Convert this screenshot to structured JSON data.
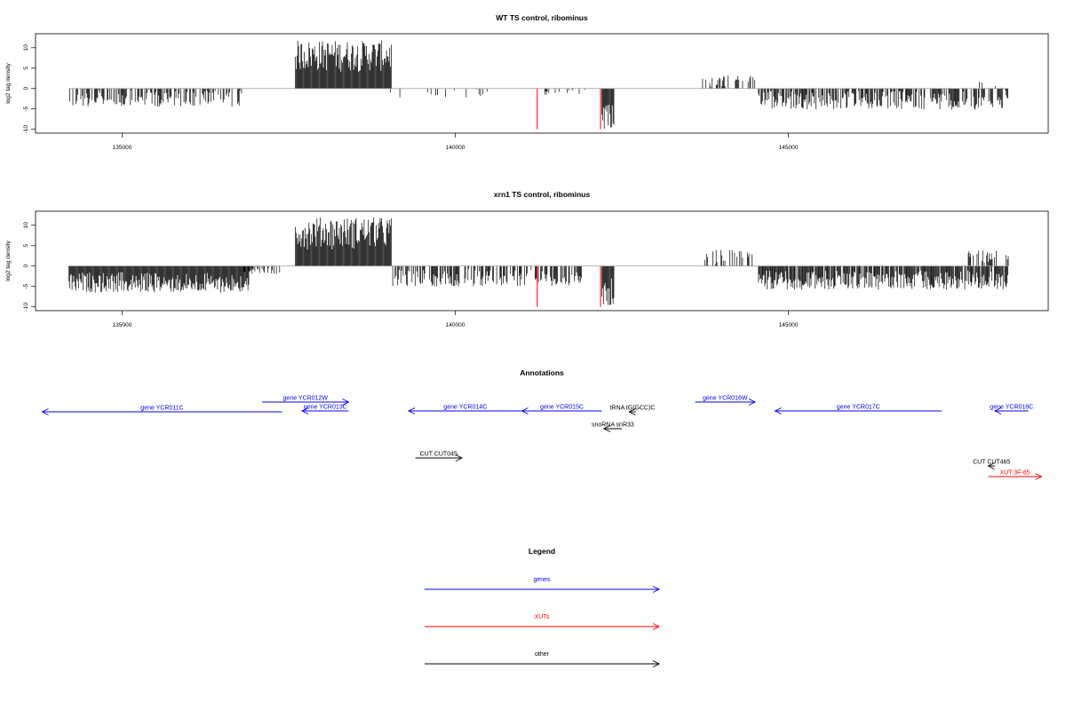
{
  "chart_data": [
    {
      "type": "bar",
      "title": "WT TS control, ribominus",
      "ylabel": "log2 tag density",
      "xlabel": "",
      "xlim": [
        133700,
        148900
      ],
      "ylim": [
        -10.5,
        13
      ],
      "x_ticks": [
        "135000",
        "140000",
        "145000"
      ],
      "y_ticks": [
        "-10",
        "-5",
        "0",
        "5",
        "10"
      ],
      "axis_line": 0,
      "color": "#000000",
      "highlight_color": "#ff3b3b",
      "segments": [
        {
          "start": 134200,
          "end": 136800,
          "sign": -1,
          "min": 0.3,
          "max": 4.5,
          "density": 0.6
        },
        {
          "start": 137600,
          "end": 139050,
          "sign": 1,
          "min": 4,
          "max": 11.8,
          "density": 1.0
        },
        {
          "start": 139000,
          "end": 140600,
          "sign": -1,
          "min": 0.2,
          "max": 2.2,
          "density": 0.12
        },
        {
          "start": 141200,
          "end": 142100,
          "sign": -1,
          "min": 0.2,
          "max": 1.6,
          "density": 0.1
        },
        {
          "start": 142200,
          "end": 142380,
          "sign": -1,
          "min": 2,
          "max": 10,
          "density": 1.0
        },
        {
          "start": 143700,
          "end": 144550,
          "sign": 1,
          "min": 0.3,
          "max": 3.2,
          "density": 0.35
        },
        {
          "start": 144550,
          "end": 148300,
          "sign": -1,
          "min": 0.5,
          "max": 5.2,
          "density": 0.7
        },
        {
          "start": 147700,
          "end": 148300,
          "sign": 1,
          "min": 0.2,
          "max": 2.0,
          "density": 0.12
        }
      ],
      "highlights": [
        {
          "x": 141230,
          "y": -10
        },
        {
          "x": 142180,
          "y": -10
        }
      ]
    },
    {
      "type": "bar",
      "title": "xrn1 TS control, ribominus",
      "ylabel": "log2 tag density",
      "xlabel": "",
      "xlim": [
        133700,
        148900
      ],
      "ylim": [
        -10.5,
        13
      ],
      "x_ticks": [
        "135000",
        "140000",
        "145000"
      ],
      "y_ticks": [
        "-10",
        "-5",
        "0",
        "5",
        "10"
      ],
      "axis_line": 0,
      "color": "#000000",
      "highlight_color": "#ff3b3b",
      "segments": [
        {
          "start": 134200,
          "end": 136900,
          "sign": -1,
          "min": 1.5,
          "max": 6.5,
          "density": 1.0
        },
        {
          "start": 136800,
          "end": 137400,
          "sign": -1,
          "min": 0.3,
          "max": 2.0,
          "density": 0.4
        },
        {
          "start": 137600,
          "end": 139050,
          "sign": 1,
          "min": 4,
          "max": 12,
          "density": 1.0
        },
        {
          "start": 139050,
          "end": 141900,
          "sign": -1,
          "min": 0.4,
          "max": 5.0,
          "density": 0.6
        },
        {
          "start": 142200,
          "end": 142380,
          "sign": -1,
          "min": 3,
          "max": 10,
          "density": 1.0
        },
        {
          "start": 143700,
          "end": 144550,
          "sign": 1,
          "min": 0.3,
          "max": 4.0,
          "density": 0.45
        },
        {
          "start": 144550,
          "end": 148300,
          "sign": -1,
          "min": 1,
          "max": 5.8,
          "density": 0.9
        },
        {
          "start": 147700,
          "end": 148300,
          "sign": 1,
          "min": 0.5,
          "max": 3.8,
          "density": 0.5
        }
      ],
      "highlights": [
        {
          "x": 141230,
          "y": -10
        },
        {
          "x": 142180,
          "y": -10
        }
      ]
    }
  ],
  "annotations": {
    "title": "Annotations",
    "items": [
      {
        "label": "gene YCR011C",
        "start": 137400,
        "end": 133800,
        "row": 2,
        "color": "#0000ee"
      },
      {
        "label": "gene YCR012W",
        "start": 137100,
        "end": 138400,
        "row": 0,
        "color": "#0000ee"
      },
      {
        "label": "gene YCR013C",
        "start": 138400,
        "end": 137700,
        "row": 1,
        "color": "#0000ee"
      },
      {
        "label": "gene YCR014C",
        "start": 141000,
        "end": 139300,
        "row": 1,
        "color": "#0000ee"
      },
      {
        "label": "gene YCR015C",
        "start": 142200,
        "end": 141000,
        "row": 1,
        "color": "#0000ee"
      },
      {
        "label": "gene YCR016W",
        "start": 143600,
        "end": 144500,
        "row": 0,
        "color": "#0000ee"
      },
      {
        "label": "gene YCR017C",
        "start": 147300,
        "end": 144800,
        "row": 1,
        "color": "#0000ee"
      },
      {
        "label": "gene YCR018C",
        "start": 148600,
        "end": 148100,
        "row": 1,
        "color": "#0000ee"
      },
      {
        "label": "snoRNA snR33",
        "start": 142500,
        "end": 142230,
        "row": 3,
        "color": "#000000"
      },
      {
        "label": "tRNA tG(GCC)C",
        "start": 142710,
        "end": 142610,
        "row": 2,
        "color": "#000000"
      },
      {
        "label": "CUT CUT045",
        "start": 139400,
        "end": 140100,
        "row": 4,
        "color": "#000000"
      },
      {
        "label": "CUT CUT465",
        "start": 148100,
        "end": 148000,
        "row": 5,
        "color": "#000000"
      },
      {
        "label": "XUT 3F-65",
        "start": 148000,
        "end": 148800,
        "row": 6,
        "color": "#ff0000"
      }
    ]
  },
  "legend": {
    "title": "Legend",
    "entries": [
      {
        "label": "genes",
        "color": "#0000ee"
      },
      {
        "label": "XUTs",
        "color": "#ff0000"
      },
      {
        "label": "other",
        "color": "#000000"
      }
    ]
  }
}
